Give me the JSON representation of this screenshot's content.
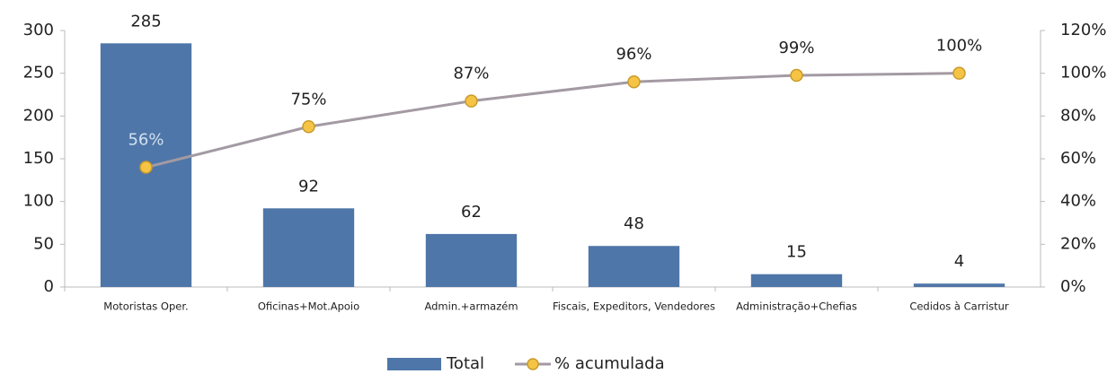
{
  "chart_data": {
    "type": "bar",
    "categories": [
      "Motoristas Oper.",
      "Oficinas+Mot.Apoio",
      "Admin.+armazém",
      "Fiscais, Expeditors, Vendedores",
      "Administração+Chefias",
      "Cedidos à Carristur"
    ],
    "series": [
      {
        "name": "Total",
        "type": "bar",
        "color": "#4f76a8",
        "values": [
          285,
          92,
          62,
          48,
          15,
          4
        ]
      },
      {
        "name": "% acumulada",
        "type": "line",
        "axis": "y2",
        "color": "#a39aa3",
        "marker_color": "#f6c445",
        "values": [
          56,
          75,
          87,
          96,
          99,
          100
        ],
        "value_labels": [
          "56%",
          "75%",
          "87%",
          "96%",
          "99%",
          "100%"
        ]
      }
    ],
    "ylim": [
      0,
      300
    ],
    "yticks": [
      0,
      50,
      100,
      150,
      200,
      250,
      300
    ],
    "y2lim": [
      0,
      120
    ],
    "y2ticks": [
      {
        "value": 0,
        "label": "0%"
      },
      {
        "value": 20,
        "label": "20%"
      },
      {
        "value": 40,
        "label": "40%"
      },
      {
        "value": 60,
        "label": "60%"
      },
      {
        "value": 80,
        "label": "80%"
      },
      {
        "value": 100,
        "label": "100%"
      },
      {
        "value": 120,
        "label": "120%"
      }
    ],
    "legend": "bottom"
  }
}
